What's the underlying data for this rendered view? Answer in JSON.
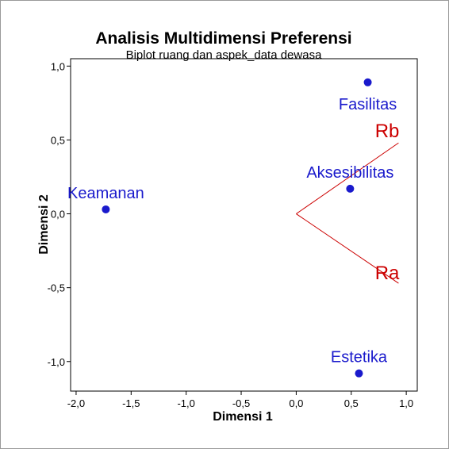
{
  "chart_data": {
    "type": "scatter",
    "title": "Analisis Multidimensi Preferensi",
    "subtitle": "Biplot ruang dan aspek_data dewasa",
    "xlabel": "Dimensi 1",
    "ylabel": "Dimensi 2",
    "xlim": [
      -2.05,
      1.1
    ],
    "ylim": [
      -1.2,
      1.05
    ],
    "x_ticks": [
      -2.0,
      -1.5,
      -1.0,
      -0.5,
      0.0,
      0.5,
      1.0
    ],
    "y_ticks": [
      -1.0,
      -0.5,
      0.0,
      0.5,
      1.0
    ],
    "x_tick_labels": [
      "-2,0",
      "-1,5",
      "-1,0",
      "-0,5",
      "0,0",
      "0,5",
      "1,0"
    ],
    "y_tick_labels": [
      "-1,0",
      "-0,5",
      "0,0",
      "0,5",
      "1,0"
    ],
    "grid": false,
    "point_color": "#1a1acc",
    "vector_color": "#cc0000",
    "points": [
      {
        "label": "Fasilitas",
        "x": 0.65,
        "y": 0.89
      },
      {
        "label": "Aksesibilitas",
        "x": 0.49,
        "y": 0.17
      },
      {
        "label": "Keamanan",
        "x": -1.73,
        "y": 0.03
      },
      {
        "label": "Estetika",
        "x": 0.57,
        "y": -1.08
      }
    ],
    "vectors": [
      {
        "label": "Rb",
        "x": 0.93,
        "y": 0.48
      },
      {
        "label": "Ra",
        "x": 0.93,
        "y": -0.47
      }
    ]
  }
}
